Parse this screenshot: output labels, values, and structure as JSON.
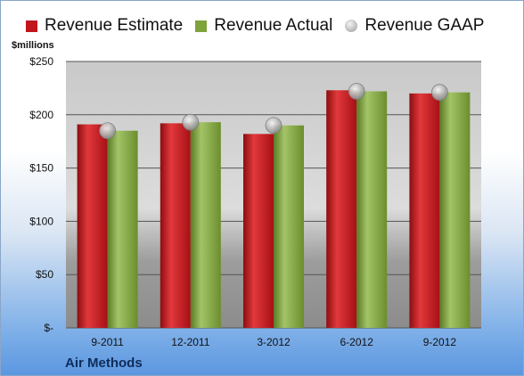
{
  "chart_data": {
    "type": "bar",
    "ylabel": "$millions",
    "company": "Air Methods",
    "categories": [
      "9-2011",
      "12-2011",
      "3-2012",
      "6-2012",
      "9-2012"
    ],
    "series": [
      {
        "name": "Revenue Estimate",
        "kind": "bar",
        "color": "#c0161c",
        "values": [
          191,
          192,
          182,
          223,
          220
        ]
      },
      {
        "name": "Revenue Actual",
        "kind": "bar",
        "color": "#7ea23c",
        "values": [
          185,
          193,
          190,
          222,
          221
        ]
      },
      {
        "name": "Revenue GAAP",
        "kind": "marker",
        "color": "#b8b8b8",
        "values": [
          185,
          193,
          190,
          222,
          221
        ]
      }
    ],
    "yticks": [
      "$-",
      "$50",
      "$100",
      "$150",
      "$200",
      "$250"
    ],
    "ytick_values": [
      0,
      50,
      100,
      150,
      200,
      250
    ],
    "ylim": [
      0,
      250
    ],
    "grid": true,
    "legend_position": "top"
  }
}
